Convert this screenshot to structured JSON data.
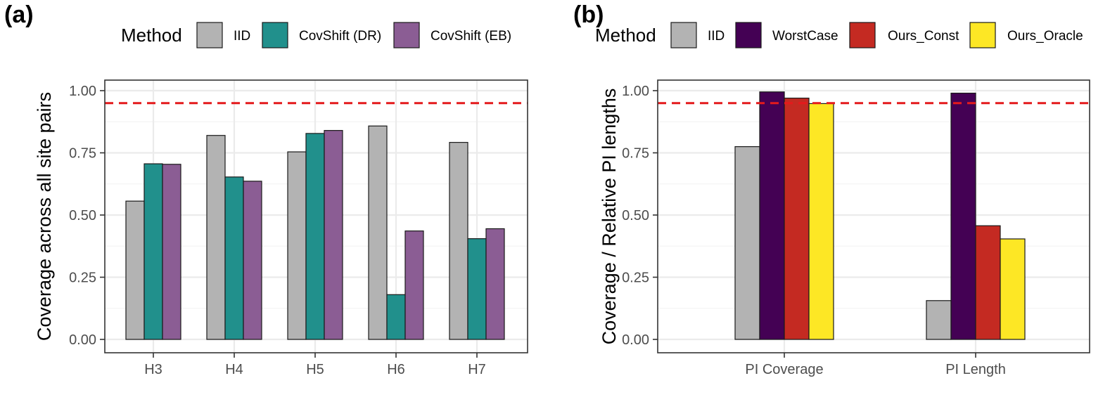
{
  "chart_data": [
    {
      "panel": "(a)",
      "type": "bar",
      "legend_title": "Method",
      "legend_position": "top",
      "ylabel": "Coverage across all site pairs",
      "xlabel": "",
      "ylim": [
        0,
        1
      ],
      "yticks": [
        "0.00",
        "0.25",
        "0.50",
        "0.75",
        "1.00"
      ],
      "reference_line": 0.95,
      "categories": [
        "H3",
        "H4",
        "H5",
        "H6",
        "H7"
      ],
      "series": [
        {
          "name": "IID",
          "color": "#b3b3b3",
          "values": [
            0.556,
            0.82,
            0.754,
            0.858,
            0.792
          ]
        },
        {
          "name": "CovShift (DR)",
          "color": "#21908c",
          "values": [
            0.706,
            0.653,
            0.828,
            0.18,
            0.405
          ]
        },
        {
          "name": "CovShift (EB)",
          "color": "#8b5d94",
          "values": [
            0.704,
            0.636,
            0.84,
            0.436,
            0.445
          ]
        }
      ]
    },
    {
      "panel": "(b)",
      "type": "bar",
      "legend_title": "Method",
      "legend_position": "top",
      "ylabel": "Coverage / Relative PI lengths",
      "xlabel": "",
      "ylim": [
        0,
        1
      ],
      "yticks": [
        "0.00",
        "0.25",
        "0.50",
        "0.75",
        "1.00"
      ],
      "reference_line": 0.95,
      "categories": [
        "PI Coverage",
        "PI Length"
      ],
      "series": [
        {
          "name": "IID",
          "color": "#b3b3b3",
          "values": [
            0.775,
            0.156
          ]
        },
        {
          "name": "WorstCase",
          "color": "#440154",
          "values": [
            0.995,
            0.99
          ]
        },
        {
          "name": "Ours_Const",
          "color": "#c42a22",
          "values": [
            0.97,
            0.457
          ]
        },
        {
          "name": "Ours_Oracle",
          "color": "#fde725",
          "values": [
            0.948,
            0.404
          ]
        }
      ]
    }
  ]
}
